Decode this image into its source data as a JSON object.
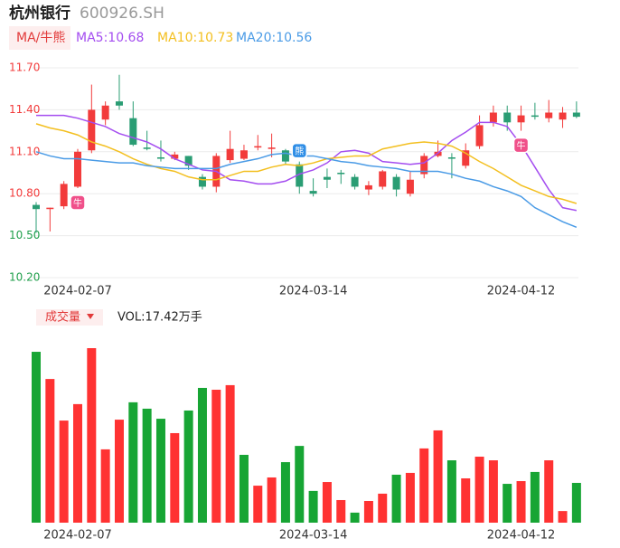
{
  "header": {
    "title": "杭州银行",
    "code": "600926.SH"
  },
  "chart_data": [
    {
      "type": "candlestick",
      "categories": [
        null,
        null,
        null,
        "2024-02-07",
        null,
        null,
        null,
        null,
        null,
        null,
        null,
        null,
        null,
        null,
        null,
        null,
        null,
        null,
        null,
        null,
        "2024-03-14",
        null,
        null,
        null,
        null,
        null,
        null,
        null,
        null,
        null,
        null,
        null,
        null,
        null,
        null,
        "2024-04-12",
        null,
        null,
        null,
        null
      ],
      "open": [
        10.72,
        10.69,
        10.71,
        10.85,
        11.11,
        11.33,
        11.46,
        11.34,
        11.13,
        11.06,
        11.05,
        11.07,
        10.92,
        10.85,
        11.04,
        11.05,
        11.13,
        11.12,
        11.11,
        11.01,
        10.82,
        10.92,
        10.95,
        10.92,
        10.83,
        10.85,
        10.92,
        10.8,
        10.94,
        11.07,
        11.06,
        11.0,
        11.14,
        11.31,
        11.38,
        11.31,
        11.36,
        11.34,
        11.33,
        11.38
      ],
      "high": [
        10.74,
        10.7,
        10.89,
        11.12,
        11.58,
        11.46,
        11.65,
        11.46,
        11.25,
        11.18,
        11.1,
        11.07,
        10.94,
        11.09,
        11.25,
        11.15,
        11.22,
        11.23,
        11.12,
        11.03,
        10.91,
        10.98,
        10.97,
        10.94,
        10.89,
        10.97,
        10.94,
        10.96,
        11.09,
        11.18,
        11.09,
        11.16,
        11.36,
        11.43,
        11.43,
        11.43,
        11.45,
        11.47,
        11.42,
        11.46
      ],
      "low": [
        10.52,
        10.53,
        10.69,
        10.84,
        11.09,
        11.29,
        11.4,
        11.14,
        11.11,
        11.03,
        11.04,
        10.97,
        10.83,
        10.81,
        11.02,
        11.04,
        11.11,
        11.06,
        11.01,
        10.8,
        10.78,
        10.84,
        10.87,
        10.83,
        10.79,
        10.83,
        10.78,
        10.78,
        10.91,
        11.06,
        10.91,
        10.98,
        11.12,
        11.28,
        11.25,
        11.25,
        11.33,
        11.31,
        11.27,
        11.34
      ],
      "close": [
        10.69,
        10.7,
        10.87,
        11.1,
        11.4,
        11.43,
        11.43,
        11.15,
        11.12,
        11.05,
        11.08,
        11.0,
        10.85,
        11.07,
        11.12,
        11.11,
        11.14,
        11.13,
        11.03,
        10.85,
        10.8,
        10.9,
        10.94,
        10.85,
        10.86,
        10.96,
        10.83,
        10.9,
        11.07,
        11.1,
        11.05,
        11.11,
        11.29,
        11.38,
        11.31,
        11.36,
        11.35,
        11.38,
        11.38,
        11.35
      ],
      "up_color": "#f23b3b",
      "down_color": "#2a9d74",
      "legend_label": "MA/牛熊",
      "series": [
        {
          "name": "MA5:10.68",
          "color": "#a44df0",
          "values": [
            11.36,
            11.36,
            11.36,
            11.34,
            11.31,
            11.28,
            11.23,
            11.2,
            11.17,
            11.12,
            11.05,
            11.01,
            10.97,
            10.96,
            10.9,
            10.89,
            10.87,
            10.87,
            10.89,
            10.94,
            10.97,
            11.02,
            11.1,
            11.11,
            11.09,
            11.03,
            11.02,
            11.01,
            11.02,
            11.09,
            11.18,
            11.24,
            11.31,
            11.31,
            11.28,
            11.15,
            10.99,
            10.83,
            10.7,
            10.68
          ]
        },
        {
          "name": "MA10:10.73",
          "color": "#f3bf1f",
          "values": [
            11.3,
            11.27,
            11.25,
            11.22,
            11.17,
            11.14,
            11.1,
            11.05,
            11.01,
            10.98,
            10.96,
            10.92,
            10.9,
            10.9,
            10.93,
            10.96,
            10.96,
            10.99,
            11.01,
            11.0,
            11.02,
            11.05,
            11.06,
            11.07,
            11.07,
            11.12,
            11.14,
            11.16,
            11.17,
            11.16,
            11.14,
            11.09,
            11.03,
            10.98,
            10.92,
            10.86,
            10.82,
            10.78,
            10.76,
            10.73
          ]
        },
        {
          "name": "MA20:10.56",
          "color": "#4a9be6",
          "values": [
            11.1,
            11.07,
            11.05,
            11.05,
            11.04,
            11.03,
            11.02,
            11.02,
            11.0,
            10.99,
            10.98,
            10.98,
            10.98,
            10.98,
            11.01,
            11.03,
            11.05,
            11.08,
            11.09,
            11.07,
            11.07,
            11.05,
            11.03,
            11.02,
            11.0,
            10.99,
            10.98,
            10.96,
            10.96,
            10.96,
            10.94,
            10.91,
            10.89,
            10.85,
            10.82,
            10.78,
            10.7,
            10.65,
            10.6,
            10.56
          ]
        }
      ],
      "annotations": [
        {
          "text": "牛",
          "index": 3,
          "kind": "bull"
        },
        {
          "text": "熊",
          "index": 19,
          "kind": "bear"
        },
        {
          "text": "牛",
          "index": 35,
          "kind": "bull"
        }
      ],
      "ylim": [
        10.2,
        11.7
      ],
      "yticks": [
        {
          "value": 11.7,
          "label": "11.70",
          "color": "#f23b3b"
        },
        {
          "value": 11.4,
          "label": "11.40",
          "color": "#f23b3b"
        },
        {
          "value": 11.1,
          "label": "11.10",
          "color": "#f23b3b"
        },
        {
          "value": 10.8,
          "label": "10.80",
          "color": "#f23b3b"
        },
        {
          "value": 10.5,
          "label": "10.50",
          "color": "#1e9e4a"
        },
        {
          "value": 10.2,
          "label": "10.20",
          "color": "#1e9e4a"
        }
      ],
      "grid": true
    },
    {
      "type": "bar",
      "legend_label": "成交量",
      "vol_label": "VOL:17.42万手",
      "categories": [
        null,
        null,
        null,
        "2024-02-07",
        null,
        null,
        null,
        null,
        null,
        null,
        null,
        null,
        null,
        null,
        null,
        null,
        null,
        null,
        null,
        null,
        "2024-03-14",
        null,
        null,
        null,
        null,
        null,
        null,
        null,
        null,
        null,
        null,
        null,
        null,
        null,
        null,
        "2024-04-12",
        null,
        null,
        null,
        null
      ],
      "values": [
        74.8,
        62.9,
        44.7,
        51.9,
        76.4,
        32.1,
        45.1,
        52.7,
        49.9,
        45.5,
        39.2,
        49.1,
        59.0,
        58.2,
        60.2,
        29.7,
        16.2,
        19.8,
        26.5,
        33.6,
        13.9,
        17.8,
        9.9,
        4.4,
        9.5,
        12.7,
        21.0,
        21.8,
        32.5,
        40.4,
        27.3,
        19.4,
        28.9,
        27.3,
        17.0,
        18.2,
        22.2,
        27.3,
        5.1,
        17.42
      ],
      "colors": [
        "#17a534",
        "#ff3232",
        "#ff3232",
        "#ff3232",
        "#ff3232",
        "#ff3232",
        "#ff3232",
        "#17a534",
        "#17a534",
        "#17a534",
        "#ff3232",
        "#17a534",
        "#17a534",
        "#ff3232",
        "#ff3232",
        "#17a534",
        "#ff3232",
        "#ff3232",
        "#17a534",
        "#17a534",
        "#17a534",
        "#ff3232",
        "#ff3232",
        "#17a534",
        "#ff3232",
        "#ff3232",
        "#17a534",
        "#ff3232",
        "#ff3232",
        "#ff3232",
        "#17a534",
        "#ff3232",
        "#ff3232",
        "#ff3232",
        "#17a534",
        "#ff3232",
        "#17a534",
        "#ff3232",
        "#ff3232",
        "#17a534"
      ]
    }
  ]
}
